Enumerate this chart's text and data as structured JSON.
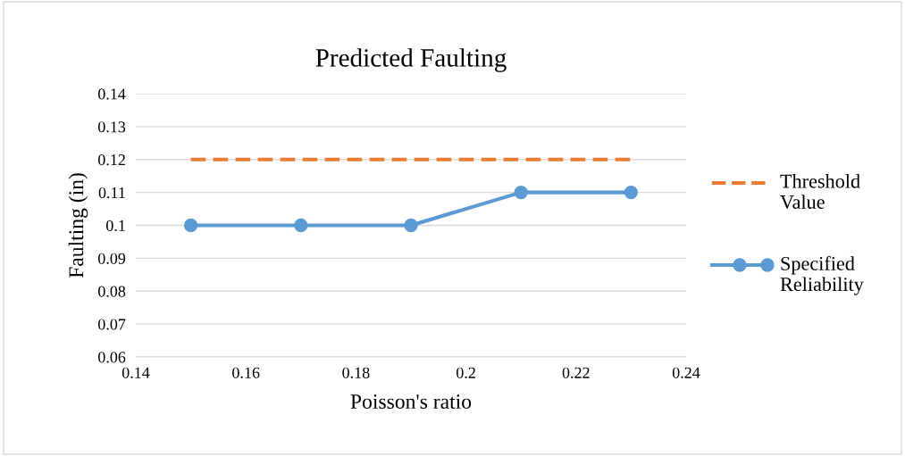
{
  "chart_data": {
    "type": "line",
    "title": "Predicted Faulting",
    "xlabel": "Poisson's ratio",
    "ylabel": "Faulting (in)",
    "x": [
      0.15,
      0.17,
      0.19,
      0.21,
      0.23
    ],
    "series": [
      {
        "name": "Threshold Value",
        "color": "#ed7d31",
        "values": [
          0.12,
          0.12,
          0.12,
          0.12,
          0.12
        ],
        "line_style": "dashed",
        "marker": "none"
      },
      {
        "name": "Specified Reliability",
        "color": "#5b9bd5",
        "values": [
          0.1,
          0.1,
          0.1,
          0.11,
          0.11
        ],
        "line_style": "solid",
        "marker": "circle"
      }
    ],
    "xlim": [
      0.14,
      0.24
    ],
    "xticks": [
      0.14,
      0.16,
      0.18,
      0.2,
      0.22,
      0.24
    ],
    "ylim": [
      0.06,
      0.14
    ],
    "yticks": [
      0.06,
      0.07,
      0.08,
      0.09,
      0.1,
      0.11,
      0.12,
      0.13,
      0.14
    ],
    "grid": "y",
    "legend": "right"
  }
}
